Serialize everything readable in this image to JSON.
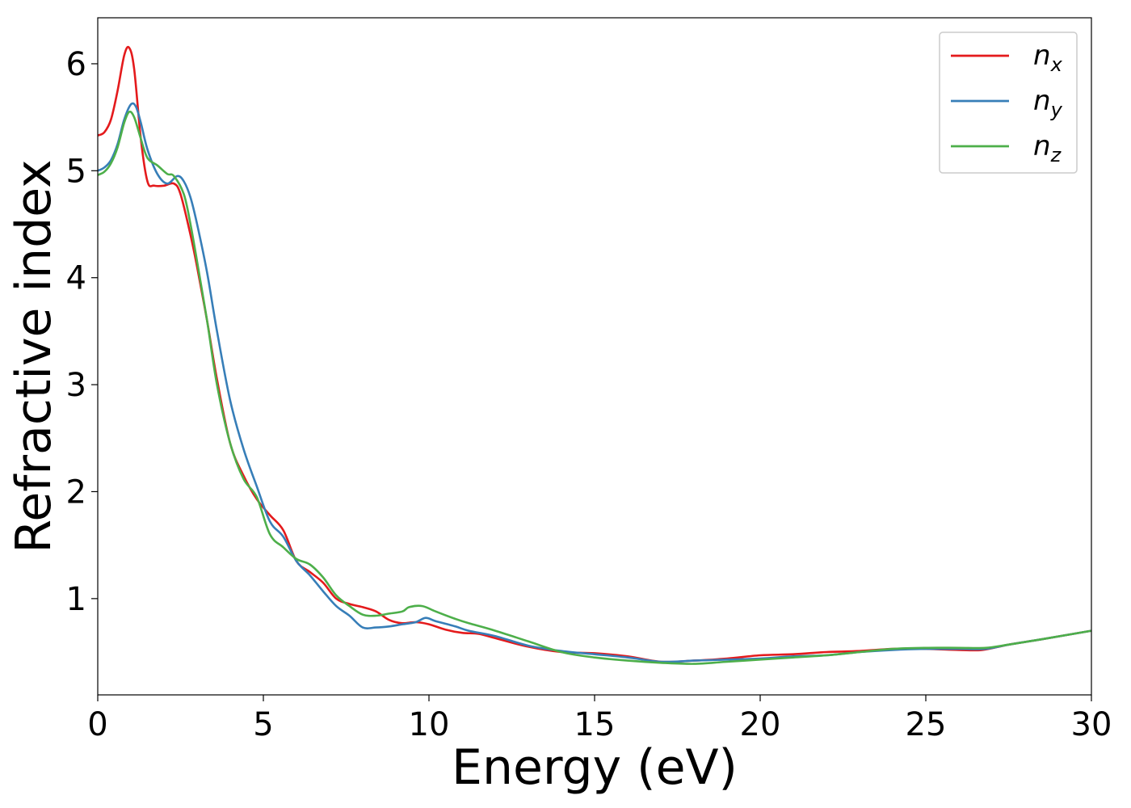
{
  "chart_data": {
    "type": "line",
    "title": "",
    "xlabel": "Energy (eV)",
    "ylabel": "Refractive index",
    "xlim": [
      0,
      30
    ],
    "ylim": [
      0.1,
      6.43
    ],
    "xticks": [
      0,
      5,
      10,
      15,
      20,
      25,
      30
    ],
    "xtick_labels": [
      "0",
      "5",
      "10",
      "15",
      "20",
      "25",
      "30"
    ],
    "yticks": [
      1,
      2,
      3,
      4,
      5,
      6
    ],
    "ytick_labels": [
      "1",
      "2",
      "3",
      "4",
      "5",
      "6"
    ],
    "grid": false,
    "legend": {
      "placement": "top-right",
      "entries": [
        {
          "base": "n",
          "sub": "x"
        },
        {
          "base": "n",
          "sub": "y"
        },
        {
          "base": "n",
          "sub": "z"
        }
      ]
    },
    "series": [
      {
        "color": "#e41a1c",
        "points": [
          [
            0,
            5.33
          ],
          [
            0.2,
            5.36
          ],
          [
            0.4,
            5.48
          ],
          [
            0.6,
            5.75
          ],
          [
            0.8,
            6.08
          ],
          [
            0.95,
            6.15
          ],
          [
            1.1,
            5.95
          ],
          [
            1.3,
            5.3
          ],
          [
            1.5,
            4.9
          ],
          [
            1.7,
            4.86
          ],
          [
            2.0,
            4.86
          ],
          [
            2.3,
            4.88
          ],
          [
            2.5,
            4.78
          ],
          [
            2.8,
            4.4
          ],
          [
            3.0,
            4.1
          ],
          [
            3.3,
            3.6
          ],
          [
            3.6,
            3.05
          ],
          [
            4.0,
            2.45
          ],
          [
            4.4,
            2.15
          ],
          [
            4.8,
            1.93
          ],
          [
            5.2,
            1.78
          ],
          [
            5.6,
            1.64
          ],
          [
            6.0,
            1.35
          ],
          [
            6.4,
            1.25
          ],
          [
            6.8,
            1.15
          ],
          [
            7.2,
            1.0
          ],
          [
            7.6,
            0.95
          ],
          [
            8.0,
            0.92
          ],
          [
            8.4,
            0.88
          ],
          [
            8.8,
            0.8
          ],
          [
            9.2,
            0.77
          ],
          [
            9.6,
            0.78
          ],
          [
            10.0,
            0.76
          ],
          [
            10.5,
            0.71
          ],
          [
            11.0,
            0.68
          ],
          [
            11.5,
            0.67
          ],
          [
            12.0,
            0.63
          ],
          [
            13.0,
            0.55
          ],
          [
            14.0,
            0.5
          ],
          [
            15.0,
            0.49
          ],
          [
            16.0,
            0.46
          ],
          [
            17.0,
            0.41
          ],
          [
            18.0,
            0.42
          ],
          [
            19.0,
            0.44
          ],
          [
            20.0,
            0.47
          ],
          [
            21.0,
            0.48
          ],
          [
            22.0,
            0.5
          ],
          [
            23.0,
            0.51
          ],
          [
            24.0,
            0.53
          ],
          [
            25.0,
            0.53
          ],
          [
            26.0,
            0.52
          ],
          [
            26.7,
            0.52
          ],
          [
            27.5,
            0.57
          ],
          [
            28.5,
            0.62
          ],
          [
            30.0,
            0.7
          ]
        ]
      },
      {
        "color": "#377eb8",
        "points": [
          [
            0,
            5.0
          ],
          [
            0.2,
            5.03
          ],
          [
            0.4,
            5.1
          ],
          [
            0.6,
            5.25
          ],
          [
            0.8,
            5.48
          ],
          [
            1.0,
            5.62
          ],
          [
            1.15,
            5.6
          ],
          [
            1.3,
            5.45
          ],
          [
            1.5,
            5.2
          ],
          [
            1.8,
            4.97
          ],
          [
            2.1,
            4.88
          ],
          [
            2.4,
            4.95
          ],
          [
            2.6,
            4.9
          ],
          [
            2.8,
            4.75
          ],
          [
            3.0,
            4.5
          ],
          [
            3.3,
            4.05
          ],
          [
            3.6,
            3.5
          ],
          [
            4.0,
            2.85
          ],
          [
            4.4,
            2.4
          ],
          [
            4.8,
            2.05
          ],
          [
            5.2,
            1.72
          ],
          [
            5.6,
            1.58
          ],
          [
            6.0,
            1.35
          ],
          [
            6.4,
            1.22
          ],
          [
            6.8,
            1.07
          ],
          [
            7.2,
            0.93
          ],
          [
            7.6,
            0.84
          ],
          [
            8.0,
            0.73
          ],
          [
            8.4,
            0.73
          ],
          [
            8.8,
            0.74
          ],
          [
            9.2,
            0.76
          ],
          [
            9.6,
            0.78
          ],
          [
            9.9,
            0.82
          ],
          [
            10.2,
            0.79
          ],
          [
            10.8,
            0.74
          ],
          [
            11.2,
            0.7
          ],
          [
            12.0,
            0.65
          ],
          [
            13.0,
            0.56
          ],
          [
            14.0,
            0.51
          ],
          [
            15.0,
            0.48
          ],
          [
            16.0,
            0.45
          ],
          [
            17.0,
            0.41
          ],
          [
            18.0,
            0.42
          ],
          [
            19.0,
            0.43
          ],
          [
            20.0,
            0.44
          ],
          [
            21.0,
            0.46
          ],
          [
            22.0,
            0.47
          ],
          [
            23.0,
            0.5
          ],
          [
            24.0,
            0.52
          ],
          [
            25.0,
            0.53
          ],
          [
            26.0,
            0.53
          ],
          [
            26.8,
            0.53
          ],
          [
            27.5,
            0.57
          ],
          [
            28.5,
            0.62
          ],
          [
            30.0,
            0.7
          ]
        ]
      },
      {
        "color": "#4daf4a",
        "points": [
          [
            0,
            4.96
          ],
          [
            0.2,
            4.99
          ],
          [
            0.4,
            5.07
          ],
          [
            0.6,
            5.22
          ],
          [
            0.8,
            5.45
          ],
          [
            0.95,
            5.55
          ],
          [
            1.1,
            5.5
          ],
          [
            1.3,
            5.3
          ],
          [
            1.5,
            5.12
          ],
          [
            1.8,
            5.05
          ],
          [
            2.1,
            4.97
          ],
          [
            2.3,
            4.95
          ],
          [
            2.6,
            4.78
          ],
          [
            2.8,
            4.5
          ],
          [
            3.0,
            4.15
          ],
          [
            3.3,
            3.6
          ],
          [
            3.6,
            3.0
          ],
          [
            4.0,
            2.45
          ],
          [
            4.4,
            2.12
          ],
          [
            4.8,
            1.95
          ],
          [
            5.2,
            1.6
          ],
          [
            5.6,
            1.48
          ],
          [
            6.0,
            1.37
          ],
          [
            6.4,
            1.32
          ],
          [
            6.8,
            1.2
          ],
          [
            7.2,
            1.03
          ],
          [
            7.6,
            0.93
          ],
          [
            8.0,
            0.85
          ],
          [
            8.4,
            0.84
          ],
          [
            8.8,
            0.86
          ],
          [
            9.2,
            0.88
          ],
          [
            9.4,
            0.92
          ],
          [
            9.8,
            0.93
          ],
          [
            10.2,
            0.88
          ],
          [
            10.8,
            0.81
          ],
          [
            11.2,
            0.77
          ],
          [
            12.0,
            0.7
          ],
          [
            13.0,
            0.6
          ],
          [
            14.0,
            0.5
          ],
          [
            15.0,
            0.45
          ],
          [
            16.0,
            0.42
          ],
          [
            17.0,
            0.4
          ],
          [
            18.0,
            0.39
          ],
          [
            19.0,
            0.41
          ],
          [
            20.0,
            0.43
          ],
          [
            21.0,
            0.45
          ],
          [
            22.0,
            0.47
          ],
          [
            23.0,
            0.5
          ],
          [
            24.0,
            0.53
          ],
          [
            25.0,
            0.54
          ],
          [
            26.0,
            0.54
          ],
          [
            26.8,
            0.54
          ],
          [
            27.5,
            0.57
          ],
          [
            28.5,
            0.62
          ],
          [
            30.0,
            0.7
          ]
        ]
      }
    ]
  }
}
